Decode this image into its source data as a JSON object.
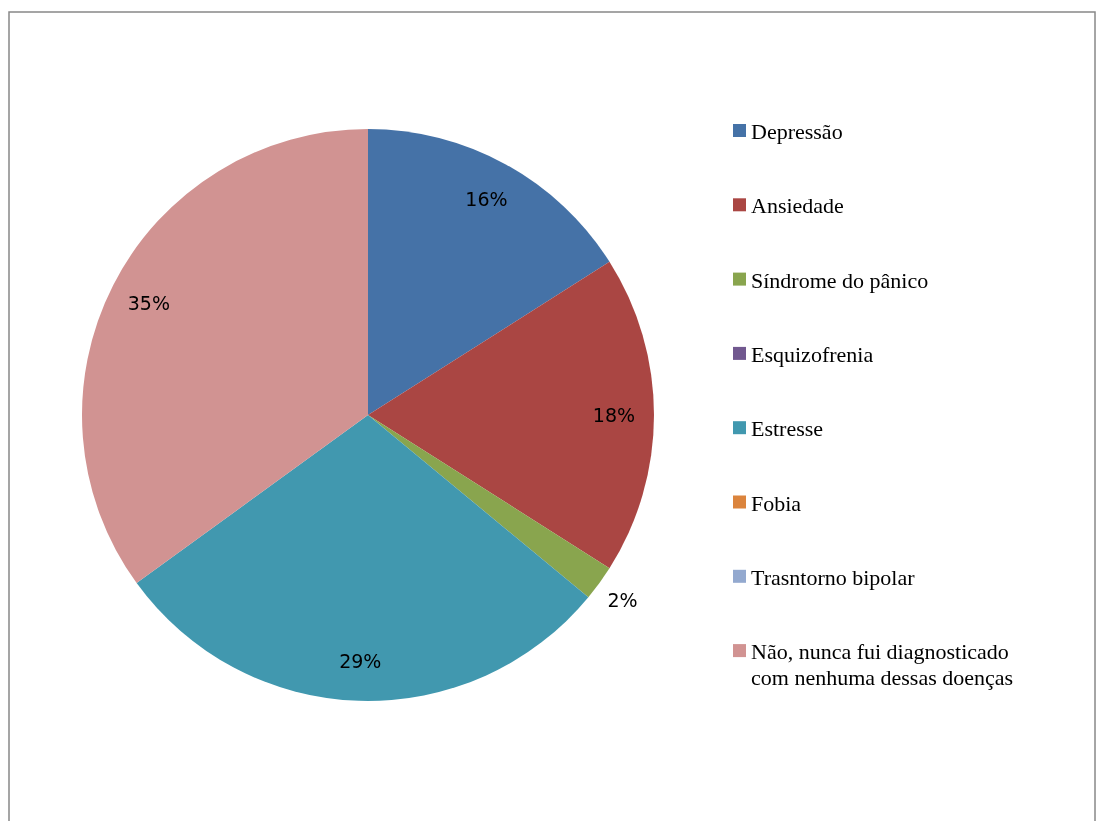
{
  "chart_data": {
    "type": "pie",
    "categories": [
      "Depressão",
      "Ansiedade",
      "Síndrome do pânico",
      "Esquizofrenia",
      "Estresse",
      "Fobia",
      "Trasntorno bipolar",
      "Não, nunca fui diagnosticado com nenhuma dessas doenças"
    ],
    "values": [
      16,
      18,
      2,
      0,
      29,
      0,
      0,
      35
    ],
    "colors": [
      "#4572a7",
      "#aa4643",
      "#89a54e",
      "#71588f",
      "#4198af",
      "#db843d",
      "#93a9cf",
      "#d19392"
    ],
    "value_labels": [
      "16%",
      "18%",
      "2%",
      null,
      "29%",
      null,
      null,
      "35%"
    ],
    "legend": "right"
  }
}
